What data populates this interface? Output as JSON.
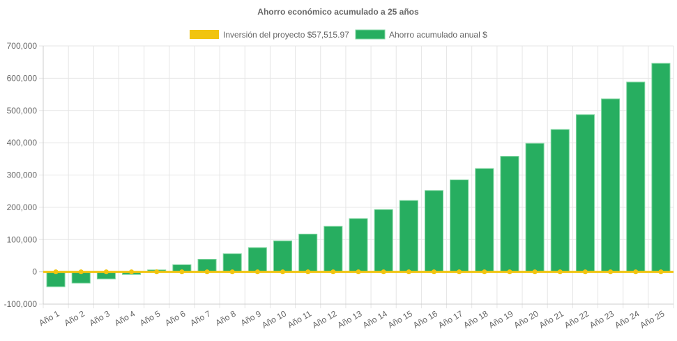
{
  "chart_data": {
    "type": "bar",
    "title": "Ahorro económico acumulado a 25 años",
    "xlabel": "",
    "ylabel": "",
    "ylim": [
      -100000,
      700000
    ],
    "yticks": [
      -100000,
      0,
      100000,
      200000,
      300000,
      400000,
      500000,
      600000,
      700000
    ],
    "ytick_labels": [
      "-100,000",
      "0",
      "100,000",
      "200,000",
      "300,000",
      "400,000",
      "500,000",
      "600,000",
      "700,000"
    ],
    "grid": true,
    "legend_position": "top",
    "categories": [
      "Año 1",
      "Año 2",
      "Año 3",
      "Año 4",
      "Año 5",
      "Año 6",
      "Año 7",
      "Año 8",
      "Año 9",
      "Año 10",
      "Año 11",
      "Año 12",
      "Año 13",
      "Año 14",
      "Año 15",
      "Año 16",
      "Año 17",
      "Año 18",
      "Año 19",
      "Año 20",
      "Año 21",
      "Año 22",
      "Año 23",
      "Año 24",
      "Año 25"
    ],
    "series": [
      {
        "name": "Inversión del proyecto $57,515.97",
        "type": "line",
        "color": "#f1c40f",
        "values": [
          0,
          0,
          0,
          0,
          0,
          0,
          0,
          0,
          0,
          0,
          0,
          0,
          0,
          0,
          0,
          0,
          0,
          0,
          0,
          0,
          0,
          0,
          0,
          0,
          0
        ]
      },
      {
        "name": "Ahorro acumulado anual $",
        "type": "bar",
        "color": "#27ae60",
        "values": [
          -46000,
          -35000,
          -22000,
          -8000,
          6000,
          22000,
          39000,
          56000,
          75000,
          96000,
          117000,
          141000,
          165000,
          193000,
          221000,
          252000,
          285000,
          320000,
          358000,
          398000,
          441000,
          487000,
          536000,
          588000,
          646000
        ]
      }
    ]
  }
}
